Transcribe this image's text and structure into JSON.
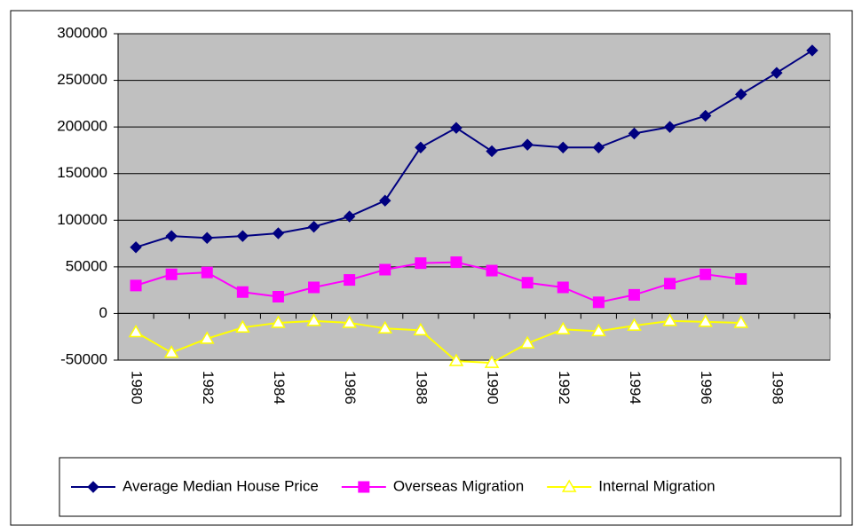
{
  "chart_data": {
    "type": "line",
    "categories": [
      "1980",
      null,
      "1982",
      null,
      "1984",
      null,
      "1986",
      null,
      "1988",
      null,
      "1990",
      null,
      "1992",
      null,
      "1994",
      null,
      "1996",
      null,
      "1998",
      null
    ],
    "series": [
      {
        "name": "Average Median House Price",
        "color": "#000080",
        "marker": "diamond",
        "values": [
          71000,
          83000,
          81000,
          83000,
          86000,
          93000,
          104000,
          121000,
          178000,
          199000,
          174000,
          181000,
          178000,
          178000,
          193000,
          200000,
          212000,
          235000,
          258000,
          282000
        ]
      },
      {
        "name": "Overseas Migration",
        "color": "#FF00FF",
        "marker": "square",
        "values": [
          30000,
          42000,
          44000,
          23000,
          18000,
          28000,
          36000,
          47000,
          54000,
          55000,
          46000,
          33000,
          28000,
          12000,
          20000,
          32000,
          42000,
          37000,
          null,
          null
        ]
      },
      {
        "name": "Internal Migration",
        "color": "#FFFF00",
        "marker": "triangle",
        "values": [
          -20000,
          -42000,
          -27000,
          -15000,
          -10000,
          -8000,
          -10000,
          -16000,
          -18000,
          -51000,
          -53000,
          -32000,
          -17000,
          -19000,
          -13000,
          -8000,
          -9000,
          -10000,
          null,
          null
        ]
      }
    ],
    "ylim": [
      -50000,
      300000
    ],
    "yticks": [
      -50000,
      0,
      50000,
      100000,
      150000,
      200000,
      250000,
      300000
    ],
    "grid": true,
    "legend": "bottom",
    "plot_background": "#C0C0C0"
  }
}
